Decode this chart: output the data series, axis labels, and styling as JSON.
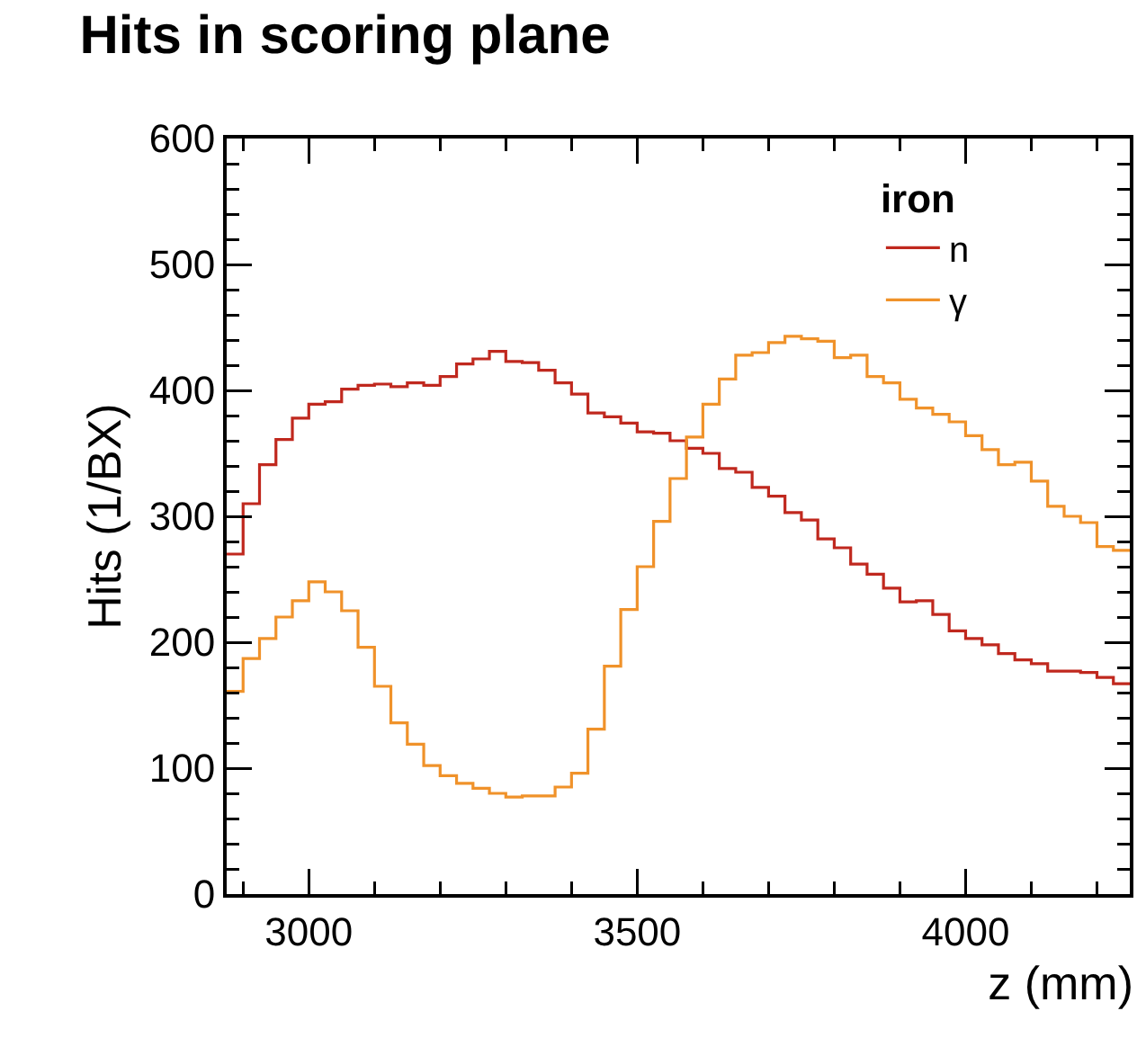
{
  "chart_data": {
    "type": "histogram",
    "title": "Hits in scoring plane",
    "xlabel": "z (mm)",
    "ylabel": "Hits (1/BX)",
    "legend_title": "iron",
    "bins": [
      2875,
      2900,
      2925,
      2950,
      2975,
      3000,
      3025,
      3050,
      3075,
      3100,
      3125,
      3150,
      3175,
      3200,
      3225,
      3250,
      3275,
      3300,
      3325,
      3350,
      3375,
      3400,
      3425,
      3450,
      3475,
      3500,
      3525,
      3550,
      3575,
      3600,
      3625,
      3650,
      3675,
      3700,
      3725,
      3750,
      3775,
      3800,
      3825,
      3850,
      3875,
      3900,
      3925,
      3950,
      3975,
      4000,
      4025,
      4050,
      4075,
      4100,
      4125,
      4150,
      4175,
      4200,
      4225,
      4250
    ],
    "series": [
      {
        "name": "n",
        "color": "#c0281e",
        "values": [
          270,
          310,
          341,
          361,
          378,
          389,
          391,
          401,
          404,
          405,
          403,
          406,
          404,
          411,
          421,
          425,
          431,
          423,
          422,
          416,
          406,
          397,
          382,
          379,
          374,
          367,
          366,
          360,
          354,
          350,
          338,
          335,
          323,
          316,
          303,
          297,
          282,
          275,
          262,
          254,
          243,
          232,
          233,
          222,
          209,
          203,
          198,
          191,
          186,
          183,
          177,
          177,
          176,
          172,
          167
        ]
      },
      {
        "name": "γ",
        "color": "#f0922a",
        "values": [
          161,
          187,
          203,
          220,
          233,
          248,
          240,
          225,
          196,
          165,
          136,
          119,
          102,
          94,
          88,
          84,
          80,
          77,
          78,
          78,
          85,
          96,
          131,
          181,
          226,
          260,
          296,
          330,
          363,
          389,
          409,
          428,
          430,
          438,
          443,
          441,
          439,
          426,
          428,
          411,
          406,
          393,
          386,
          381,
          375,
          364,
          353,
          341,
          343,
          328,
          308,
          300,
          295,
          276,
          273
        ]
      }
    ],
    "xlim": [
      2875,
      4250
    ],
    "xticks": [
      3000,
      3500,
      4000
    ],
    "ylim": [
      0,
      600
    ],
    "yticks": [
      0,
      100,
      200,
      300,
      400,
      500,
      600
    ],
    "grid": false,
    "legend": "top right",
    "marker": "none",
    "line_style": "solid"
  }
}
